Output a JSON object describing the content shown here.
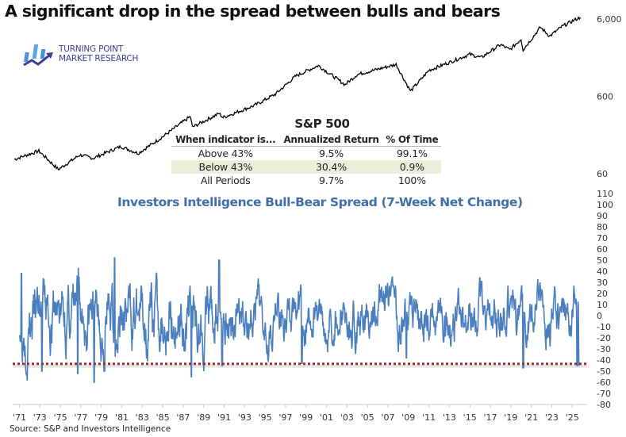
{
  "title": "A significant drop in the spread between bulls and bears",
  "logo": {
    "line1": "TURNING POINT",
    "line2": "MARKET RESEARCH",
    "icon": "bar-chart-arrow-logo-icon",
    "color": "#3a3f8f",
    "accent": "#4a90e2"
  },
  "source": "Source: S&P and Investors Intelligence",
  "table": {
    "title": "S&P 500",
    "headers": [
      "When indicator is...",
      "Annualized Return",
      "% Of Time"
    ],
    "rows": [
      {
        "label": "Above 43%",
        "return": "9.5%",
        "time": "99.1%",
        "highlight": false
      },
      {
        "label": "Below 43%",
        "return": "30.4%",
        "time": "0.9%",
        "highlight": true
      },
      {
        "label": "All Periods",
        "return": "9.7%",
        "time": "100%",
        "highlight": false
      }
    ],
    "highlight_color": "#eaefdc"
  },
  "chart_data": [
    {
      "type": "line",
      "title": "S&P 500",
      "scale": "log",
      "y_ticks": [
        "6,000",
        "600",
        "60"
      ],
      "ylim": [
        40,
        9000
      ],
      "color": "#000000",
      "x_years": [
        1970.5,
        1972.9,
        1974.8,
        1976.9,
        1978.2,
        1980.9,
        1982.6,
        1985,
        1987.7,
        1987.9,
        1990.5,
        1990.9,
        1994,
        1996,
        1998,
        2000.2,
        2002.8,
        2004,
        2007.8,
        2009.2,
        2011,
        2013,
        2015,
        2016.1,
        2018,
        2018.9,
        2020,
        2020.2,
        2021.9,
        2022.8,
        2024,
        2025.3,
        2025.8
      ],
      "values": [
        92,
        118,
        68,
        105,
        95,
        135,
        110,
        180,
        330,
        240,
        360,
        320,
        460,
        640,
        1100,
        1500,
        850,
        1150,
        1550,
        700,
        1300,
        1650,
        2100,
        1900,
        2800,
        2400,
        3300,
        2400,
        4700,
        3600,
        4800,
        5900,
        6300
      ]
    },
    {
      "type": "line",
      "title": "Investors Intelligence Bull-Bear Spread (7-Week Net Change)",
      "color": "#4a7ebf",
      "ylim": [
        -80,
        110
      ],
      "y_ticks": [
        110,
        100,
        90,
        80,
        70,
        60,
        50,
        40,
        30,
        20,
        10,
        0,
        -10,
        -20,
        -30,
        -40,
        -50,
        -60,
        -70,
        -80
      ],
      "x_tick_labels": [
        "'71",
        "'73",
        "'75",
        "'77",
        "'79",
        "'81",
        "'83",
        "'85",
        "'87",
        "'89",
        "'91",
        "'93",
        "'95",
        "'97",
        "'99",
        "'01",
        "'03",
        "'05",
        "'07",
        "'09",
        "'11",
        "'13",
        "'15",
        "'17",
        "'19",
        "'21",
        "'23",
        "'25"
      ],
      "xlim": [
        1970.5,
        2026.3
      ],
      "threshold": {
        "value": -43,
        "color": "#a52a2a",
        "style": "dotted"
      },
      "notable_points": [
        {
          "x": 1971.2,
          "y": 38
        },
        {
          "x": 1973.2,
          "y": -50
        },
        {
          "x": 1976.7,
          "y": -52
        },
        {
          "x": 1978.3,
          "y": -64
        },
        {
          "x": 1979.3,
          "y": -50
        },
        {
          "x": 1980.3,
          "y": 52
        },
        {
          "x": 1987.8,
          "y": -55
        },
        {
          "x": 1990.5,
          "y": 50
        },
        {
          "x": 1990.8,
          "y": -45
        },
        {
          "x": 1998.6,
          "y": -43
        },
        {
          "x": 2008.8,
          "y": -38
        },
        {
          "x": 2020.2,
          "y": -47
        },
        {
          "x": 2025.5,
          "y": -45
        }
      ],
      "amplitude_range": [
        -40,
        40
      ]
    }
  ]
}
